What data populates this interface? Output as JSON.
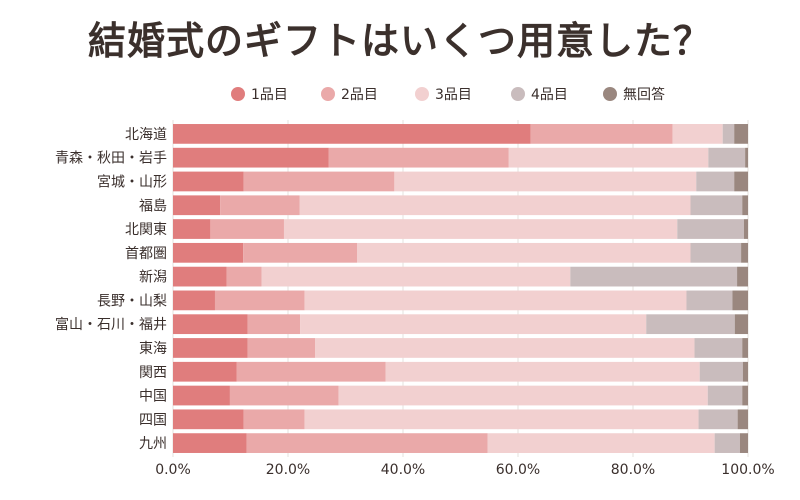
{
  "chart_data": {
    "type": "bar",
    "orientation": "horizontal",
    "stacked": "percent",
    "title": "結婚式のギフトはいくつ用意した？",
    "legend_position": "top",
    "categories": [
      "北海道",
      "青森・秋田・岩手",
      "宮城・山形",
      "福島",
      "北関東",
      "首都圏",
      "新潟",
      "長野・山梨",
      "富山・石川・福井",
      "東海",
      "関西",
      "中国",
      "四国",
      "九州"
    ],
    "series": [
      {
        "name": "1品目",
        "color": "#e07d7d",
        "values": [
          62.2,
          27.1,
          12.3,
          8.2,
          6.5,
          12.2,
          9.3,
          7.3,
          13.0,
          13.0,
          11.1,
          9.9,
          12.3,
          12.8
        ]
      },
      {
        "name": "2品目",
        "color": "#eaa9a9",
        "values": [
          24.7,
          31.3,
          26.2,
          13.8,
          12.8,
          19.8,
          6.1,
          15.6,
          9.1,
          11.7,
          25.9,
          18.9,
          10.6,
          41.9
        ]
      },
      {
        "name": "3品目",
        "color": "#f2d0d0",
        "values": [
          8.7,
          34.7,
          52.5,
          68.0,
          68.4,
          58.0,
          53.7,
          66.4,
          60.2,
          66.0,
          54.6,
          64.2,
          68.5,
          39.5
        ]
      },
      {
        "name": "4品目",
        "color": "#c9bcbd",
        "values": [
          2.0,
          6.4,
          6.6,
          9.0,
          11.6,
          8.8,
          29.0,
          8.0,
          15.4,
          8.3,
          7.5,
          6.0,
          6.8,
          4.4
        ]
      },
      {
        "name": "無回答",
        "color": "#9a877f",
        "values": [
          2.4,
          0.5,
          2.4,
          1.0,
          0.7,
          1.2,
          1.9,
          2.7,
          2.3,
          1.0,
          0.9,
          1.0,
          1.8,
          1.4
        ]
      }
    ],
    "xlim": [
      0,
      100
    ],
    "x_ticks": [
      "0.0%",
      "20.0%",
      "40.0%",
      "60.0%",
      "80.0%",
      "100.0%"
    ],
    "grid": true
  }
}
